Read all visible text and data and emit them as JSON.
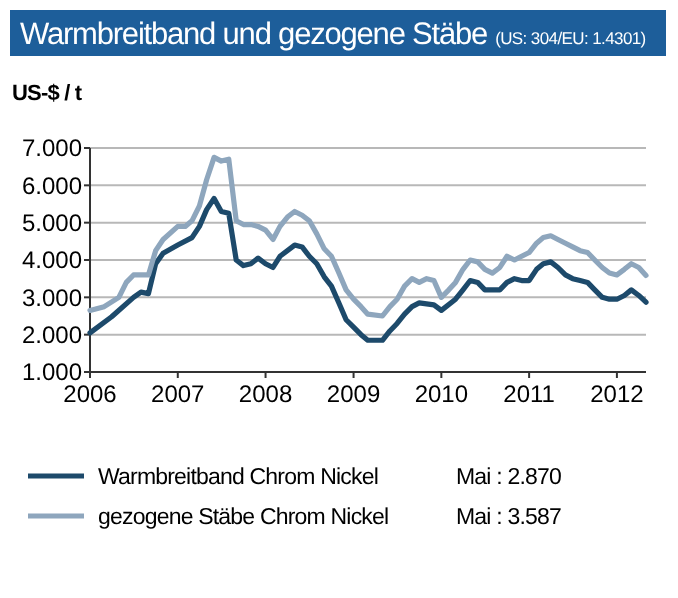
{
  "chart_data": {
    "type": "line",
    "title": "Warmbreitband und gezogene Stäbe",
    "subtitle": "(US: 304/EU: 1.4301)",
    "ylabel": "US-$ / t",
    "annotations": [
      "Mai : 2.870",
      "Mai : 3.587"
    ],
    "xlim": [
      "2006-01",
      "2012-05"
    ],
    "xticks": [
      {
        "value": "2006-01",
        "label": "2006"
      },
      {
        "value": "2007-01",
        "label": "2007"
      },
      {
        "value": "2008-01",
        "label": "2008"
      },
      {
        "value": "2009-01",
        "label": "2009"
      },
      {
        "value": "2010-01",
        "label": "2010"
      },
      {
        "value": "2011-01",
        "label": "2011"
      },
      {
        "value": "2012-01",
        "label": "2012"
      }
    ],
    "ylim": [
      1000,
      7000
    ],
    "yticks": [
      {
        "value": 1000,
        "label": "1.000"
      },
      {
        "value": 2000,
        "label": "2.000"
      },
      {
        "value": 3000,
        "label": "3.000"
      },
      {
        "value": 4000,
        "label": "4.000"
      },
      {
        "value": 5000,
        "label": "5.000"
      },
      {
        "value": 6000,
        "label": "6.000"
      },
      {
        "value": 7000,
        "label": "7.000"
      }
    ],
    "grid": "y",
    "legend": "bottom",
    "marker": "none",
    "line_style": "solid",
    "series": [
      {
        "name": "Warmbreitband Chrom Nickel",
        "color": "#1d4a6b",
        "x": [
          "2006-01",
          "2006-04",
          "2006-07",
          "2006-08",
          "2006-09",
          "2006-10",
          "2006-11",
          "2007-01",
          "2007-03",
          "2007-04",
          "2007-05",
          "2007-06",
          "2007-07",
          "2007-08",
          "2007-09",
          "2007-10",
          "2007-11",
          "2007-12",
          "2008-01",
          "2008-02",
          "2008-03",
          "2008-05",
          "2008-06",
          "2008-07",
          "2008-08",
          "2008-09",
          "2008-10",
          "2008-11",
          "2008-12",
          "2009-01",
          "2009-02",
          "2009-03",
          "2009-05",
          "2009-06",
          "2009-07",
          "2009-08",
          "2009-09",
          "2009-10",
          "2009-12",
          "2010-01",
          "2010-03",
          "2010-04",
          "2010-05",
          "2010-06",
          "2010-07",
          "2010-09",
          "2010-10",
          "2010-11",
          "2010-12",
          "2011-01",
          "2011-02",
          "2011-03",
          "2011-04",
          "2011-05",
          "2011-06",
          "2011-07",
          "2011-08",
          "2011-09",
          "2011-10",
          "2011-11",
          "2011-12",
          "2012-01",
          "2012-02",
          "2012-03",
          "2012-04",
          "2012-05"
        ],
        "values": [
          2050,
          2480,
          3000,
          3140,
          3100,
          3900,
          4180,
          4400,
          4600,
          4900,
          5350,
          5650,
          5300,
          5250,
          4000,
          3850,
          3900,
          4050,
          3900,
          3800,
          4100,
          4400,
          4350,
          4100,
          3900,
          3550,
          3300,
          2850,
          2400,
          2200,
          2000,
          1850,
          1850,
          2100,
          2300,
          2550,
          2750,
          2850,
          2800,
          2650,
          2950,
          3200,
          3450,
          3400,
          3200,
          3200,
          3400,
          3500,
          3450,
          3450,
          3750,
          3900,
          3950,
          3800,
          3600,
          3500,
          3450,
          3400,
          3200,
          3000,
          2950,
          2950,
          3050,
          3200,
          3050,
          2870
        ]
      },
      {
        "name": "gezogene Stäbe Chrom Nickel",
        "color": "#8ea6bd",
        "x": [
          "2006-01",
          "2006-03",
          "2006-05",
          "2006-06",
          "2006-07",
          "2006-09",
          "2006-10",
          "2006-11",
          "2007-01",
          "2007-02",
          "2007-03",
          "2007-04",
          "2007-05",
          "2007-06",
          "2007-07",
          "2007-08",
          "2007-09",
          "2007-10",
          "2007-11",
          "2007-12",
          "2008-01",
          "2008-02",
          "2008-03",
          "2008-04",
          "2008-05",
          "2008-06",
          "2008-07",
          "2008-08",
          "2008-09",
          "2008-10",
          "2008-11",
          "2008-12",
          "2009-01",
          "2009-02",
          "2009-03",
          "2009-05",
          "2009-06",
          "2009-07",
          "2009-08",
          "2009-09",
          "2009-10",
          "2009-11",
          "2009-12",
          "2010-01",
          "2010-02",
          "2010-03",
          "2010-04",
          "2010-05",
          "2010-06",
          "2010-07",
          "2010-08",
          "2010-09",
          "2010-10",
          "2010-11",
          "2010-12",
          "2011-01",
          "2011-02",
          "2011-03",
          "2011-04",
          "2011-05",
          "2011-06",
          "2011-07",
          "2011-08",
          "2011-09",
          "2011-10",
          "2011-11",
          "2011-12",
          "2012-01",
          "2012-02",
          "2012-03",
          "2012-04",
          "2012-05"
        ],
        "values": [
          2650,
          2750,
          3000,
          3400,
          3600,
          3600,
          4250,
          4550,
          4900,
          4900,
          5050,
          5450,
          6150,
          6750,
          6650,
          6700,
          5050,
          4950,
          4950,
          4900,
          4800,
          4550,
          4900,
          5150,
          5300,
          5200,
          5050,
          4700,
          4300,
          4100,
          3650,
          3200,
          2950,
          2750,
          2550,
          2500,
          2750,
          2950,
          3300,
          3500,
          3400,
          3500,
          3450,
          3000,
          3200,
          3400,
          3750,
          4000,
          3950,
          3750,
          3650,
          3800,
          4100,
          4000,
          4100,
          4200,
          4450,
          4600,
          4650,
          4550,
          4450,
          4350,
          4250,
          4200,
          4000,
          3800,
          3650,
          3600,
          3750,
          3900,
          3800,
          3587
        ]
      }
    ]
  }
}
